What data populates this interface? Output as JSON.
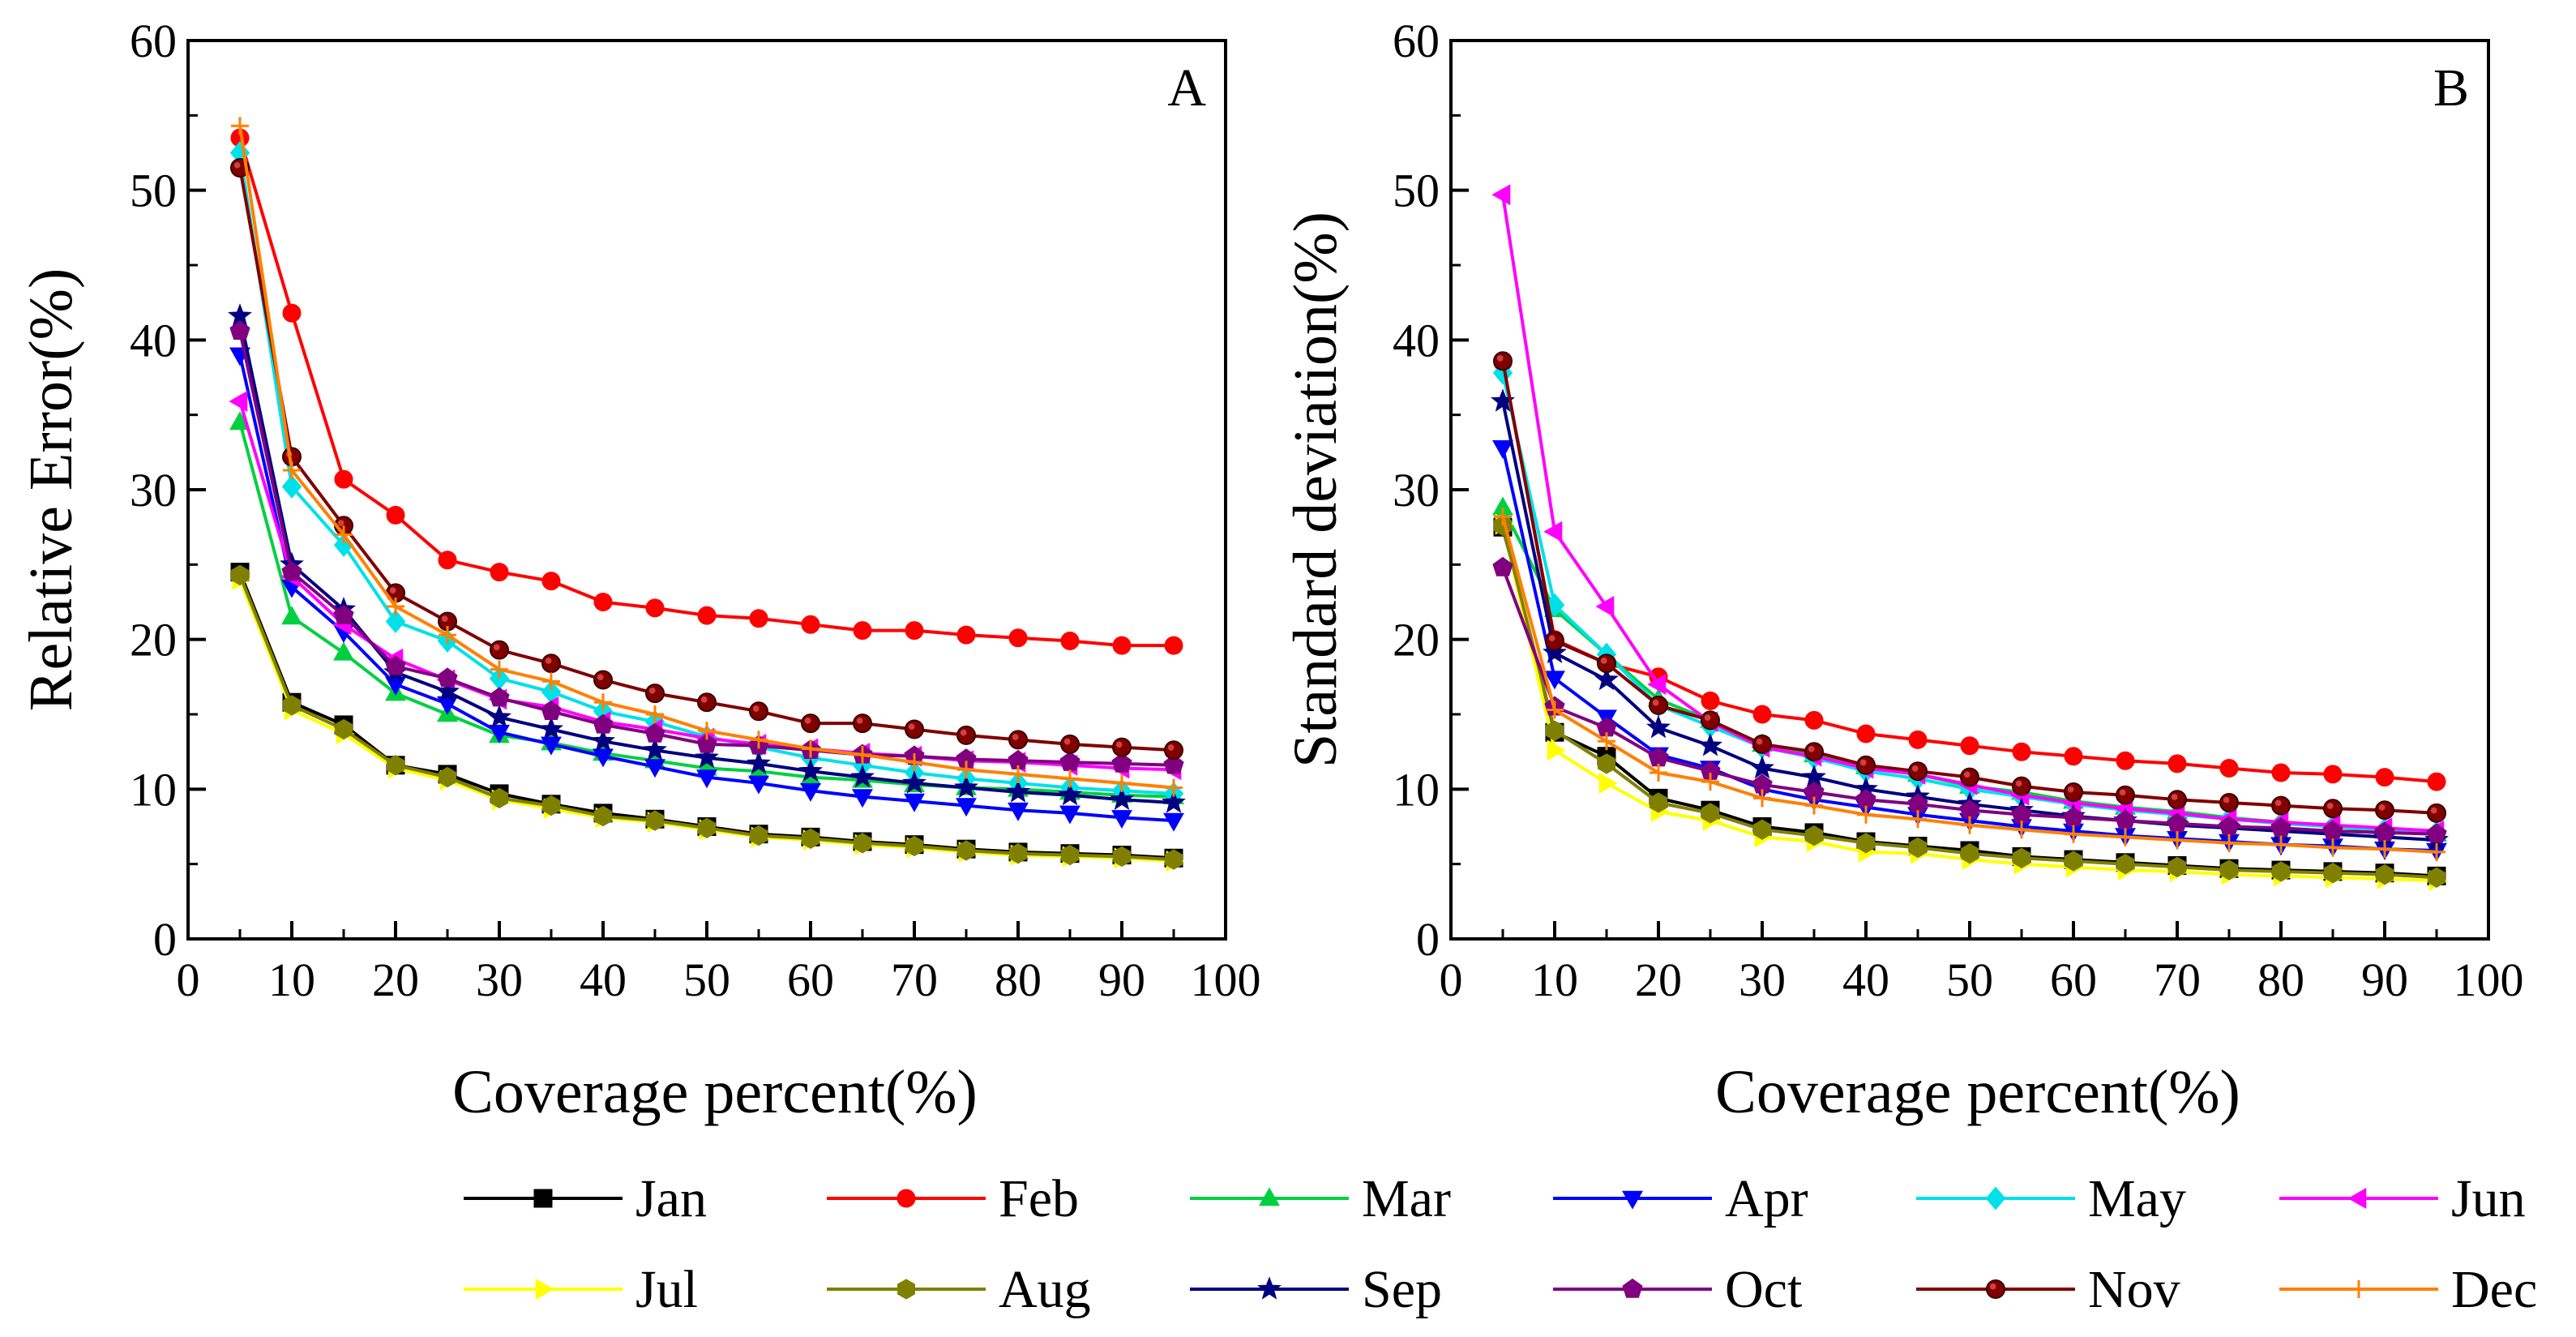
{
  "chart_data": [
    {
      "type": "line",
      "panel_label": "A",
      "xlabel": "Coverage percent(%)",
      "ylabel": "Relative Error(%)",
      "xlim": [
        0,
        100
      ],
      "ylim": [
        0,
        60
      ],
      "xticks": [
        "0",
        "10",
        "20",
        "30",
        "40",
        "50",
        "60",
        "70",
        "80",
        "90",
        "100"
      ],
      "yticks": [
        "0",
        "10",
        "20",
        "30",
        "40",
        "50",
        "60"
      ],
      "grid": false,
      "x": [
        5,
        10,
        15,
        20,
        25,
        30,
        35,
        40,
        45,
        50,
        55,
        60,
        65,
        70,
        75,
        80,
        85,
        90,
        95
      ],
      "series": [
        {
          "name": "Jan",
          "values": [
            24.5,
            15.8,
            14.3,
            11.6,
            11.0,
            9.7,
            9.0,
            8.4,
            8.0,
            7.5,
            7.0,
            6.8,
            6.5,
            6.3,
            6.0,
            5.8,
            5.7,
            5.6,
            5.4
          ]
        },
        {
          "name": "Feb",
          "values": [
            53.5,
            41.8,
            30.7,
            28.3,
            25.3,
            24.5,
            23.9,
            22.5,
            22.1,
            21.6,
            21.4,
            21.0,
            20.6,
            20.6,
            20.3,
            20.1,
            19.9,
            19.6,
            19.6
          ]
        },
        {
          "name": "Mar",
          "values": [
            34.5,
            21.5,
            19.1,
            16.4,
            15.0,
            13.6,
            13.1,
            12.4,
            11.9,
            11.4,
            11.2,
            10.8,
            10.6,
            10.3,
            10.1,
            10.0,
            9.8,
            9.6,
            9.5
          ]
        },
        {
          "name": "Apr",
          "values": [
            39.0,
            23.5,
            20.5,
            17.0,
            15.7,
            13.8,
            13.0,
            12.2,
            11.5,
            10.8,
            10.4,
            9.9,
            9.5,
            9.2,
            8.9,
            8.6,
            8.4,
            8.1,
            7.9
          ]
        },
        {
          "name": "May",
          "values": [
            52.5,
            30.2,
            26.3,
            21.2,
            19.9,
            17.4,
            16.5,
            15.2,
            14.5,
            13.5,
            12.8,
            12.1,
            11.6,
            11.1,
            10.7,
            10.4,
            10.1,
            9.9,
            9.7
          ]
        },
        {
          "name": "Jun",
          "values": [
            35.9,
            24.2,
            21.0,
            18.7,
            17.3,
            16.0,
            15.5,
            14.5,
            14.0,
            13.4,
            13.0,
            12.7,
            12.4,
            12.2,
            11.9,
            11.8,
            11.6,
            11.4,
            11.3
          ]
        },
        {
          "name": "Jul",
          "values": [
            24.0,
            15.3,
            13.7,
            11.4,
            10.6,
            9.3,
            8.7,
            8.1,
            7.8,
            7.3,
            6.8,
            6.6,
            6.3,
            6.1,
            5.8,
            5.6,
            5.5,
            5.4,
            5.2
          ]
        },
        {
          "name": "Aug",
          "values": [
            24.3,
            15.6,
            14.0,
            11.6,
            10.8,
            9.4,
            8.9,
            8.2,
            7.9,
            7.4,
            6.9,
            6.7,
            6.4,
            6.2,
            5.9,
            5.7,
            5.6,
            5.5,
            5.3
          ]
        },
        {
          "name": "Sep",
          "values": [
            41.6,
            25.0,
            22.0,
            17.8,
            16.5,
            14.8,
            14.0,
            13.2,
            12.6,
            12.1,
            11.7,
            11.2,
            10.8,
            10.4,
            10.1,
            9.8,
            9.6,
            9.3,
            9.1
          ]
        },
        {
          "name": "Oct",
          "values": [
            40.6,
            24.5,
            21.6,
            18.2,
            17.4,
            16.1,
            15.2,
            14.3,
            13.7,
            13.0,
            12.9,
            12.6,
            12.3,
            12.2,
            12.0,
            11.9,
            11.8,
            11.7,
            11.6
          ]
        },
        {
          "name": "Nov",
          "values": [
            51.5,
            32.2,
            27.6,
            23.1,
            21.2,
            19.3,
            18.4,
            17.3,
            16.4,
            15.8,
            15.2,
            14.4,
            14.4,
            14.0,
            13.6,
            13.3,
            13.0,
            12.8,
            12.6
          ]
        },
        {
          "name": "Dec",
          "values": [
            54.3,
            31.3,
            27.0,
            22.2,
            20.3,
            18.0,
            17.2,
            15.8,
            15.0,
            13.9,
            13.3,
            12.7,
            12.3,
            11.8,
            11.3,
            11.0,
            10.7,
            10.4,
            10.1
          ]
        }
      ]
    },
    {
      "type": "line",
      "panel_label": "B",
      "xlabel": "Coverage percent(%)",
      "ylabel": "Standard deviation(%)",
      "xlim": [
        0,
        100
      ],
      "ylim": [
        0,
        60
      ],
      "xticks": [
        "0",
        "10",
        "20",
        "30",
        "40",
        "50",
        "60",
        "70",
        "80",
        "90",
        "100"
      ],
      "yticks": [
        "0",
        "10",
        "20",
        "30",
        "40",
        "50",
        "60"
      ],
      "grid": false,
      "x": [
        5,
        10,
        15,
        20,
        25,
        30,
        35,
        40,
        45,
        50,
        55,
        60,
        65,
        70,
        75,
        80,
        85,
        90,
        95
      ],
      "series": [
        {
          "name": "Jan",
          "values": [
            27.5,
            13.8,
            12.2,
            9.4,
            8.6,
            7.5,
            7.1,
            6.5,
            6.2,
            5.9,
            5.5,
            5.3,
            5.1,
            4.9,
            4.7,
            4.6,
            4.5,
            4.4,
            4.2
          ]
        },
        {
          "name": "Feb",
          "values": [
            38.5,
            20.0,
            18.4,
            17.5,
            15.9,
            15.0,
            14.6,
            13.7,
            13.3,
            12.9,
            12.5,
            12.2,
            11.9,
            11.7,
            11.4,
            11.1,
            11.0,
            10.8,
            10.5
          ]
        },
        {
          "name": "Mar",
          "values": [
            28.8,
            22.0,
            19.0,
            16.0,
            14.6,
            13.0,
            12.3,
            11.5,
            11.0,
            10.2,
            9.8,
            9.2,
            8.8,
            8.5,
            8.1,
            7.8,
            7.5,
            7.2,
            7.0
          ]
        },
        {
          "name": "Apr",
          "values": [
            32.8,
            17.4,
            14.8,
            12.3,
            11.4,
            10.0,
            9.3,
            8.8,
            8.3,
            7.9,
            7.5,
            7.2,
            6.9,
            6.7,
            6.5,
            6.3,
            6.2,
            6.0,
            5.9
          ]
        },
        {
          "name": "May",
          "values": [
            37.8,
            22.3,
            19.0,
            15.6,
            14.2,
            12.8,
            12.1,
            11.2,
            10.7,
            10.0,
            9.5,
            9.0,
            8.6,
            8.3,
            8.0,
            7.7,
            7.5,
            7.3,
            7.1
          ]
        },
        {
          "name": "Jun",
          "values": [
            49.7,
            27.2,
            22.2,
            17.0,
            14.5,
            12.8,
            12.2,
            11.4,
            11.0,
            10.3,
            9.6,
            9.1,
            8.7,
            8.4,
            8.0,
            7.8,
            7.6,
            7.4,
            7.2
          ]
        },
        {
          "name": "Jul",
          "values": [
            27.7,
            12.6,
            10.4,
            8.5,
            7.9,
            6.8,
            6.5,
            5.8,
            5.7,
            5.3,
            5.0,
            4.8,
            4.6,
            4.5,
            4.3,
            4.2,
            4.1,
            4.0,
            3.9
          ]
        },
        {
          "name": "Aug",
          "values": [
            27.6,
            13.9,
            11.7,
            9.1,
            8.4,
            7.3,
            6.9,
            6.4,
            6.1,
            5.7,
            5.4,
            5.2,
            5.0,
            4.8,
            4.6,
            4.5,
            4.4,
            4.3,
            4.1
          ]
        },
        {
          "name": "Sep",
          "values": [
            35.9,
            19.1,
            17.3,
            14.1,
            12.9,
            11.4,
            10.8,
            10.0,
            9.5,
            9.0,
            8.6,
            8.2,
            7.9,
            7.6,
            7.4,
            7.2,
            7.0,
            6.8,
            6.6
          ]
        },
        {
          "name": "Oct",
          "values": [
            24.8,
            15.5,
            14.1,
            12.1,
            11.2,
            10.3,
            9.8,
            9.3,
            9.0,
            8.6,
            8.3,
            8.1,
            7.9,
            7.7,
            7.5,
            7.4,
            7.2,
            7.1,
            7.0
          ]
        },
        {
          "name": "Nov",
          "values": [
            38.6,
            19.9,
            18.4,
            15.6,
            14.6,
            13.0,
            12.5,
            11.6,
            11.2,
            10.8,
            10.2,
            9.8,
            9.6,
            9.3,
            9.1,
            8.9,
            8.7,
            8.6,
            8.4
          ]
        },
        {
          "name": "Dec",
          "values": [
            28.2,
            15.3,
            13.2,
            11.1,
            10.5,
            9.4,
            8.9,
            8.3,
            8.0,
            7.6,
            7.3,
            7.0,
            6.8,
            6.6,
            6.4,
            6.3,
            6.1,
            6.0,
            5.8
          ]
        }
      ]
    }
  ],
  "legend": [
    {
      "name": "Jan",
      "color": "#000000",
      "marker": "square"
    },
    {
      "name": "Feb",
      "color": "#ff0000",
      "marker": "circle"
    },
    {
      "name": "Mar",
      "color": "#00d040",
      "marker": "triangle-up"
    },
    {
      "name": "Apr",
      "color": "#0000ff",
      "marker": "triangle-down"
    },
    {
      "name": "May",
      "color": "#00e0e8",
      "marker": "diamond"
    },
    {
      "name": "Jun",
      "color": "#ff00ff",
      "marker": "triangle-left"
    },
    {
      "name": "Jul",
      "color": "#ffff00",
      "marker": "triangle-right"
    },
    {
      "name": "Aug",
      "color": "#808000",
      "marker": "hexagon"
    },
    {
      "name": "Sep",
      "color": "#000080",
      "marker": "star"
    },
    {
      "name": "Oct",
      "color": "#800080",
      "marker": "pentagon"
    },
    {
      "name": "Nov",
      "color": "#800000",
      "marker": "sphere"
    },
    {
      "name": "Dec",
      "color": "#ff8000",
      "marker": "plus"
    }
  ]
}
